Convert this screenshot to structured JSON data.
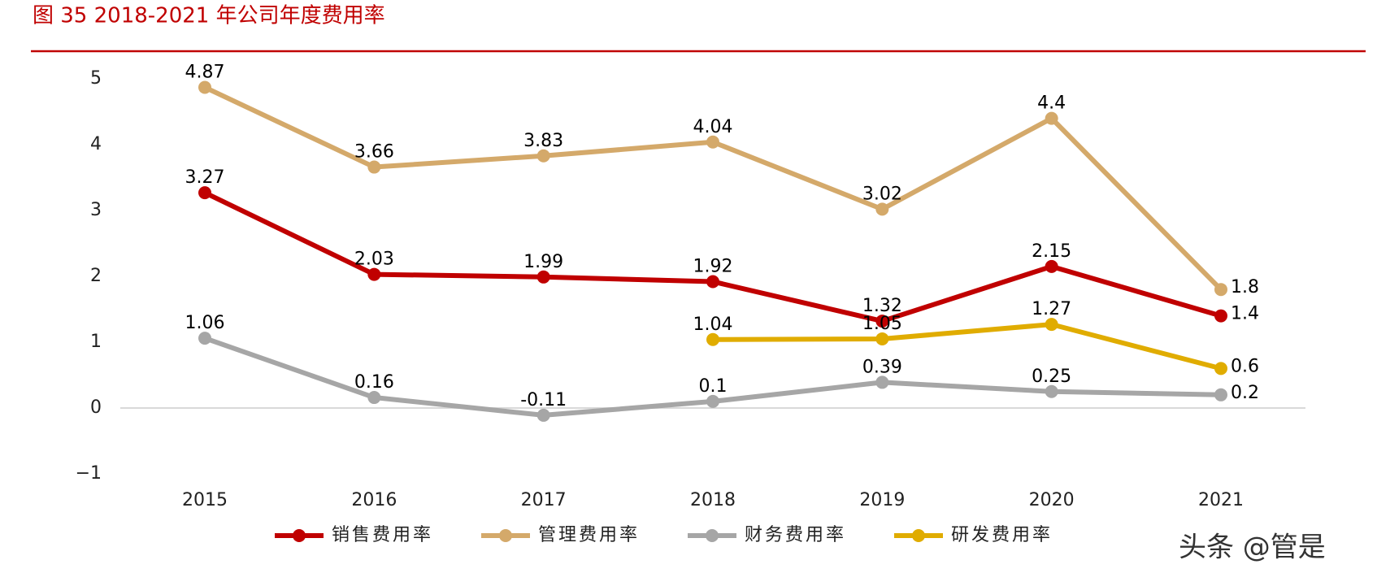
{
  "chart_data": {
    "type": "line",
    "title": "图 35 2018-2021 年公司年度费用率",
    "watermark": "头条 @管是",
    "categories": [
      "2015",
      "2016",
      "2017",
      "2018",
      "2019",
      "2020",
      "2021"
    ],
    "series": [
      {
        "name": "销售费用率",
        "color": "#c00000",
        "values": [
          3.27,
          2.03,
          1.99,
          1.92,
          1.32,
          2.15,
          1.4
        ]
      },
      {
        "name": "管理费用率",
        "color": "#d4a96a",
        "values": [
          4.87,
          3.66,
          3.83,
          4.04,
          3.02,
          4.4,
          1.8
        ]
      },
      {
        "name": "财务费用率",
        "color": "#a6a6a6",
        "values": [
          1.06,
          0.16,
          -0.11,
          0.1,
          0.39,
          0.25,
          0.2
        ]
      },
      {
        "name": "研发费用率",
        "color": "#e0ac00",
        "values": [
          null,
          null,
          null,
          1.04,
          1.05,
          1.27,
          0.6
        ]
      }
    ],
    "ylim": [
      -1,
      5
    ],
    "yticks": [
      {
        "value": -1,
        "label": "−1"
      },
      0,
      1,
      2,
      3,
      4,
      5
    ],
    "grid": false,
    "legend": "bottom"
  }
}
